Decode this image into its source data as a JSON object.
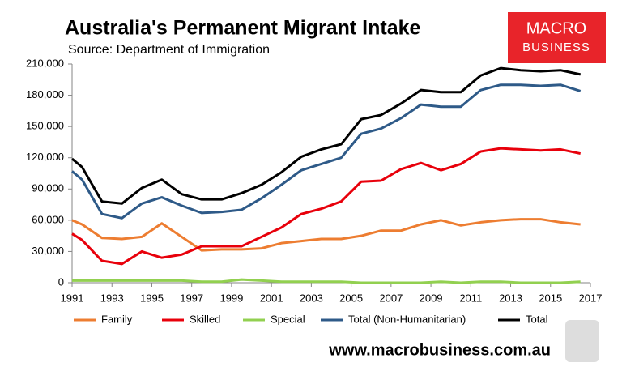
{
  "chart_data": {
    "type": "line",
    "title": "Australia's Permanent Migrant Intake",
    "subtitle": "Source: Department of Immigration",
    "logo": [
      "MACRO",
      "BUSINESS"
    ],
    "footer": "www.macrobusiness.com.au",
    "x": [
      1991,
      1991.5,
      1992.5,
      1993.5,
      1994.5,
      1995.5,
      1996.5,
      1997.5,
      1998.5,
      1999.5,
      2000.5,
      2001.5,
      2002.5,
      2003.5,
      2004.5,
      2005.5,
      2006.5,
      2007.5,
      2008.5,
      2009.5,
      2010.5,
      2011.5,
      2012.5,
      2013.5,
      2014.5,
      2015.5,
      2016.5
    ],
    "series": [
      {
        "name": "Family",
        "color": "#ed7d31",
        "values": [
          60000,
          56000,
          43000,
          42000,
          44000,
          57000,
          44000,
          31000,
          32000,
          32000,
          33000,
          38000,
          40000,
          42000,
          42000,
          45000,
          50000,
          50000,
          56000,
          60000,
          55000,
          58000,
          60000,
          61000,
          61000,
          58000,
          56000
        ]
      },
      {
        "name": "Skilled",
        "color": "#e8000b",
        "values": [
          47000,
          41000,
          21000,
          18000,
          30000,
          24000,
          27000,
          35000,
          35000,
          35000,
          44000,
          53000,
          66000,
          71000,
          78000,
          97000,
          98000,
          109000,
          115000,
          108000,
          114000,
          126000,
          129000,
          128000,
          127000,
          128000,
          124000
        ]
      },
      {
        "name": "Special",
        "color": "#92d050",
        "values": [
          2000,
          2000,
          2000,
          2000,
          2000,
          2000,
          2000,
          1000,
          1000,
          3000,
          2000,
          1000,
          1000,
          1000,
          1000,
          0,
          0,
          0,
          0,
          1000,
          0,
          1000,
          1000,
          0,
          0,
          0,
          1000
        ]
      },
      {
        "name": "Total (Non-Humanitarian)",
        "color": "#2e5a88",
        "values": [
          107000,
          99000,
          66000,
          62000,
          76000,
          82000,
          74000,
          67000,
          68000,
          70000,
          81000,
          94000,
          108000,
          114000,
          120000,
          143000,
          148000,
          158000,
          171000,
          169000,
          169000,
          185000,
          190000,
          190000,
          189000,
          190000,
          184000
        ]
      },
      {
        "name": "Total",
        "color": "#000000",
        "values": [
          119000,
          111000,
          78000,
          76000,
          91000,
          99000,
          85000,
          80000,
          80000,
          86000,
          94000,
          106000,
          121000,
          128000,
          133000,
          157000,
          161000,
          172000,
          185000,
          183000,
          183000,
          199000,
          206000,
          204000,
          203000,
          204000,
          200000
        ]
      }
    ],
    "xlim": [
      1991,
      2017
    ],
    "xticks": [
      1991,
      1993,
      1995,
      1997,
      1999,
      2001,
      2003,
      2005,
      2007,
      2009,
      2011,
      2013,
      2015,
      2017
    ],
    "ylim": [
      0,
      210000
    ],
    "yticks": [
      0,
      {
        "value": 30000,
        "label": "30,000"
      },
      {
        "value": 60000,
        "label": "60,000"
      },
      {
        "value": 90000,
        "label": "90,000"
      },
      {
        "value": 120000,
        "label": "120,000"
      },
      {
        "value": 150000,
        "label": "150,000"
      },
      {
        "value": 180000,
        "label": "180,000"
      },
      {
        "value": 210000,
        "label": "210,000"
      }
    ],
    "grid": false,
    "legend": "bottom"
  }
}
